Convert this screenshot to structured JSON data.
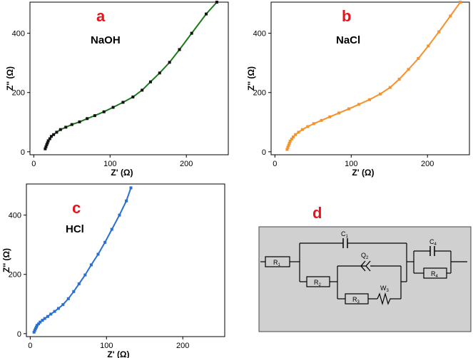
{
  "colors": {
    "a": "#1a7a1a",
    "b": "#f5922b",
    "c": "#2a6fd4",
    "axis": "#000000",
    "letter": "#e8141c",
    "circuit_bg": "#d0d0d0"
  },
  "panels": {
    "a": {
      "letter": "a",
      "label": "NaOH"
    },
    "b": {
      "letter": "b",
      "label": "NaCl"
    },
    "c": {
      "letter": "c",
      "label": "HCl"
    },
    "d": {
      "letter": "d"
    }
  },
  "circuit": {
    "labels": {
      "R1": "R",
      "R1_sub": "1",
      "C1": "C",
      "C1_sub": "1",
      "R2": "R",
      "R2_sub": "2",
      "Q2": "Q",
      "Q2_sub": "2",
      "R3": "R",
      "R3_sub": "3",
      "W3": "W",
      "W3_sub": "3",
      "C4": "C",
      "C4_sub": "4",
      "R4": "R",
      "R4_sub": "4"
    }
  },
  "chart_data": [
    {
      "type": "line",
      "panel": "a",
      "xlabel": "Z' (Ω)",
      "ylabel": "Z'' (Ω)",
      "xlim": [
        -5,
        255
      ],
      "ylim": [
        -10,
        505
      ],
      "xticks": [
        0,
        100,
        200
      ],
      "yticks": [
        0,
        200,
        400
      ],
      "x": [
        15,
        16,
        17,
        18,
        19,
        21,
        23,
        26,
        30,
        35,
        42,
        50,
        60,
        70,
        80,
        92,
        104,
        117,
        130,
        142,
        153,
        165,
        178,
        191,
        207,
        226,
        240
      ],
      "y": [
        10,
        17,
        24,
        30,
        37,
        44,
        52,
        58,
        66,
        75,
        83,
        92,
        101,
        112,
        122,
        135,
        150,
        167,
        185,
        208,
        236,
        266,
        302,
        345,
        400,
        465,
        505
      ]
    },
    {
      "type": "line",
      "panel": "b",
      "xlabel": "Z' (Ω)",
      "ylabel": "Z'' (Ω)",
      "xlim": [
        -5,
        255
      ],
      "ylim": [
        -10,
        505
      ],
      "xticks": [
        0,
        100,
        200
      ],
      "yticks": [
        0,
        200,
        400
      ],
      "x": [
        16,
        17,
        18,
        19,
        20,
        22,
        24,
        27,
        31,
        36,
        43,
        51,
        61,
        72,
        84,
        97,
        110,
        124,
        138,
        151,
        163,
        175,
        188,
        201,
        215,
        230,
        243
      ],
      "y": [
        8,
        15,
        22,
        29,
        36,
        43,
        50,
        58,
        66,
        75,
        85,
        95,
        106,
        118,
        131,
        145,
        160,
        176,
        195,
        217,
        245,
        278,
        315,
        357,
        405,
        458,
        505
      ]
    },
    {
      "type": "line",
      "panel": "c",
      "xlabel": "Z' (Ω)",
      "ylabel": "Z'' (Ω)",
      "xlim": [
        -5,
        255
      ],
      "ylim": [
        -10,
        505
      ],
      "xticks": [
        0,
        100,
        200
      ],
      "yticks": [
        0,
        200,
        400
      ],
      "x": [
        5,
        6,
        7,
        8,
        9,
        11,
        13,
        16,
        19,
        23,
        27,
        32,
        37,
        43,
        50,
        57,
        64,
        72,
        80,
        89,
        98,
        107,
        117,
        126,
        132
      ],
      "y": [
        5,
        11,
        17,
        22,
        28,
        33,
        39,
        45,
        51,
        58,
        66,
        75,
        85,
        98,
        118,
        142,
        168,
        198,
        232,
        268,
        308,
        352,
        400,
        448,
        492
      ]
    }
  ]
}
